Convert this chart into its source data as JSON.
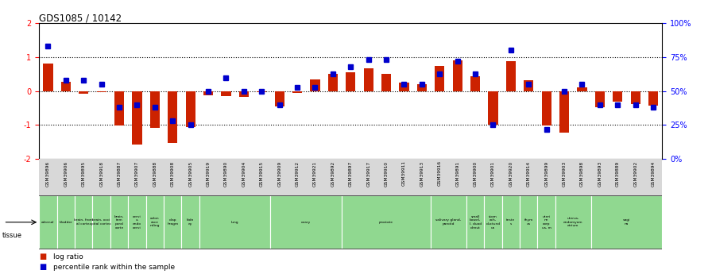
{
  "title": "GDS1085 / 10142",
  "samples": [
    "GSM39896",
    "GSM39906",
    "GSM39895",
    "GSM39918",
    "GSM39887",
    "GSM39907",
    "GSM39888",
    "GSM39908",
    "GSM39905",
    "GSM39919",
    "GSM39890",
    "GSM39904",
    "GSM39915",
    "GSM39909",
    "GSM39912",
    "GSM39921",
    "GSM39892",
    "GSM39897",
    "GSM39917",
    "GSM39910",
    "GSM39911",
    "GSM39913",
    "GSM39916",
    "GSM39891",
    "GSM39900",
    "GSM39901",
    "GSM39920",
    "GSM39914",
    "GSM39899",
    "GSM39903",
    "GSM39898",
    "GSM39893",
    "GSM39889",
    "GSM39902",
    "GSM39894"
  ],
  "log_ratio": [
    0.82,
    0.28,
    -0.08,
    -0.04,
    -1.02,
    -1.58,
    -1.08,
    -1.52,
    -1.05,
    -0.12,
    -0.15,
    -0.18,
    -0.02,
    -0.45,
    -0.05,
    0.35,
    0.5,
    0.55,
    0.68,
    0.5,
    0.25,
    0.2,
    0.75,
    0.9,
    0.45,
    -1.0,
    0.88,
    0.32,
    -1.02,
    -1.22,
    0.12,
    -0.48,
    -0.32,
    -0.38,
    -0.42
  ],
  "percentile_rank": [
    83,
    58,
    58,
    55,
    38,
    40,
    38,
    28,
    25,
    50,
    60,
    50,
    50,
    40,
    53,
    53,
    63,
    68,
    73,
    73,
    55,
    55,
    63,
    72,
    63,
    25,
    80,
    55,
    22,
    50,
    55,
    40,
    40,
    40,
    38
  ],
  "tissue_groups": [
    {
      "label": "adrenal",
      "start": 0,
      "end": 1
    },
    {
      "label": "bladder",
      "start": 1,
      "end": 2
    },
    {
      "label": "brain, front\nal cortex",
      "start": 2,
      "end": 3
    },
    {
      "label": "brain, occi\npital cortex",
      "start": 3,
      "end": 4
    },
    {
      "label": "brain,\ntem\nporal\ncorte",
      "start": 4,
      "end": 5
    },
    {
      "label": "cervi\nx,\nendo\ncervi",
      "start": 5,
      "end": 6
    },
    {
      "label": "colon\nasce\nnding",
      "start": 6,
      "end": 7
    },
    {
      "label": "diap\nhragm",
      "start": 7,
      "end": 8
    },
    {
      "label": "kidn\ney",
      "start": 8,
      "end": 9
    },
    {
      "label": "lung",
      "start": 9,
      "end": 13
    },
    {
      "label": "ovary",
      "start": 13,
      "end": 17
    },
    {
      "label": "prostate",
      "start": 17,
      "end": 22
    },
    {
      "label": "salivary gland,\nparotid",
      "start": 22,
      "end": 24
    },
    {
      "label": "small\nbowel,\nl. duod\ndenut",
      "start": 24,
      "end": 25
    },
    {
      "label": "stom\nach,\nductund\nus",
      "start": 25,
      "end": 26
    },
    {
      "label": "teste\ns",
      "start": 26,
      "end": 27
    },
    {
      "label": "thym\nus",
      "start": 27,
      "end": 28
    },
    {
      "label": "uteri\nne\ncorp\nus, m",
      "start": 28,
      "end": 29
    },
    {
      "label": "uterus,\nendomyom\netrium",
      "start": 29,
      "end": 31
    },
    {
      "label": "vagi\nna",
      "start": 31,
      "end": 35
    }
  ],
  "bar_color_red": "#cc2200",
  "bar_color_blue": "#0000cc",
  "background_color": "#ffffff",
  "xticklabel_bg": "#d8d8d8",
  "tissue_color": "#90d890",
  "ylim_left": [
    -2,
    2
  ],
  "ylim_right": [
    0,
    100
  ]
}
